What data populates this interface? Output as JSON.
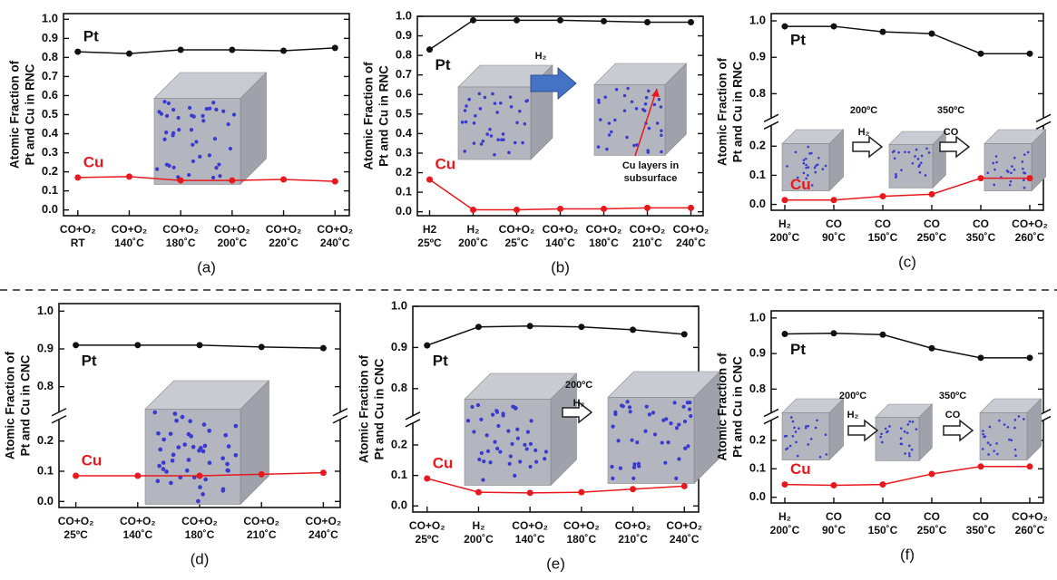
{
  "chart_data": [
    {
      "type": "line",
      "label": "(a)",
      "y_label": [
        "Atomic Fraction of",
        "Pt and Cu in RNC"
      ],
      "categories": [
        [
          "CO+O₂",
          "RT"
        ],
        [
          "CO+O₂",
          "140˚C"
        ],
        [
          "CO+O₂",
          "180˚C"
        ],
        [
          "CO+O₂",
          "200˚C"
        ],
        [
          "CO+O₂",
          "220˚C"
        ],
        [
          "CO+O₂",
          "240˚C"
        ]
      ],
      "series": [
        {
          "name": "Pt",
          "color": "#111111",
          "values": [
            0.83,
            0.82,
            0.84,
            0.84,
            0.835,
            0.85
          ]
        },
        {
          "name": "Cu",
          "color": "#e8191e",
          "values": [
            0.17,
            0.175,
            0.155,
            0.155,
            0.16,
            0.15
          ]
        }
      ],
      "ylim": [
        -0.03,
        1.03
      ],
      "yticks": [
        {
          "value": 0,
          "label": "0.0"
        },
        0.1,
        0.2,
        0.3,
        0.4,
        0.5,
        0.6,
        0.7,
        0.8,
        0.9,
        {
          "value": 1,
          "label": "1.0"
        }
      ],
      "annotations": []
    },
    {
      "type": "line",
      "label": "(b)",
      "y_label": [
        "Atomic Fraction of",
        "Pt and Cu in RNC"
      ],
      "categories": [
        [
          "H2",
          "25ºC"
        ],
        [
          "H₂",
          "200˚C"
        ],
        [
          "CO+O₂",
          "25˚C"
        ],
        [
          "CO+O₂",
          "140˚C"
        ],
        [
          "CO+O₂",
          "180˚C"
        ],
        [
          "CO+O₂",
          "210˚C"
        ],
        [
          "CO+O₂",
          "240˚C"
        ]
      ],
      "series": [
        {
          "name": "Pt",
          "color": "#111111",
          "values": [
            0.83,
            0.98,
            0.98,
            0.98,
            0.975,
            0.97,
            0.97
          ]
        },
        {
          "name": "Cu",
          "color": "#e8191e",
          "values": [
            0.165,
            0.01,
            0.01,
            0.015,
            0.015,
            0.02,
            0.02
          ]
        }
      ],
      "ylim": [
        -0.02,
        1.0
      ],
      "yticks": [
        {
          "value": 0,
          "label": "0.0"
        },
        0.1,
        0.2,
        0.3,
        0.4,
        0.5,
        0.6,
        0.7,
        0.8,
        0.9,
        {
          "value": 1,
          "label": "1.0"
        }
      ],
      "annotations": [
        "H₂",
        "Cu layers in",
        "subsurface"
      ]
    },
    {
      "type": "line",
      "label": "(c)",
      "y_label": [
        "Atomic Fraction of",
        "Pt and Cu in RNC"
      ],
      "categories": [
        [
          "H₂",
          "200˚C"
        ],
        [
          "CO",
          "90˚C"
        ],
        [
          "CO",
          "150˚C"
        ],
        [
          "CO",
          "250˚C"
        ],
        [
          "CO",
          "350˚C"
        ],
        [
          "CO+O₂",
          "260˚C"
        ]
      ],
      "series": [
        {
          "name": "Pt",
          "color": "#111111",
          "values": [
            0.985,
            0.985,
            0.97,
            0.965,
            0.91,
            0.91
          ]
        },
        {
          "name": "Cu",
          "color": "#e8191e",
          "values": [
            0.015,
            0.015,
            0.028,
            0.035,
            0.09,
            0.09
          ]
        }
      ],
      "y_segments": [
        {
          "ylim": [
            -0.02,
            0.25
          ],
          "yticks": [
            {
              "value": 0,
              "label": "0.0"
            },
            0.1,
            0.2
          ]
        },
        {
          "ylim": [
            0.75,
            1.02
          ],
          "yticks": [
            0.8,
            0.9,
            {
              "value": 1,
              "label": "1.0"
            }
          ]
        }
      ],
      "annotations": [
        "200ºC",
        "H₂",
        "350ºC",
        "CO"
      ]
    },
    {
      "type": "line",
      "label": "(d)",
      "y_label": [
        "Atomic Fraction of",
        "Pt and Cu in CNC"
      ],
      "categories": [
        [
          "CO+O₂",
          "25ºC"
        ],
        [
          "CO+O₂",
          "140˚C"
        ],
        [
          "CO+O₂",
          "180˚C"
        ],
        [
          "CO+O₂",
          "210˚C"
        ],
        [
          "CO+O₂",
          "240˚C"
        ]
      ],
      "series": [
        {
          "name": "Pt",
          "color": "#111111",
          "values": [
            0.91,
            0.91,
            0.91,
            0.905,
            0.902
          ]
        },
        {
          "name": "Cu",
          "color": "#e8191e",
          "values": [
            0.085,
            0.085,
            0.085,
            0.09,
            0.095
          ]
        }
      ],
      "y_segments": [
        {
          "ylim": [
            -0.02,
            0.25
          ],
          "yticks": [
            {
              "value": 0,
              "label": "0.0"
            },
            0.1,
            0.2
          ]
        },
        {
          "ylim": [
            0.75,
            1.02
          ],
          "yticks": [
            0.8,
            0.9,
            {
              "value": 1,
              "label": "1.0"
            }
          ]
        }
      ],
      "annotations": []
    },
    {
      "type": "line",
      "label": "(e)",
      "y_label": [
        "Atomic Fraction of",
        "Pt and Cu in CNC"
      ],
      "categories": [
        [
          "CO+O₂",
          "25ºC"
        ],
        [
          "H₂",
          "200˚C"
        ],
        [
          "CO+O₂",
          "140˚C"
        ],
        [
          "CO+O₂",
          "180˚C"
        ],
        [
          "CO+O₂",
          "210˚C"
        ],
        [
          "CO+O₂",
          "240˚C"
        ]
      ],
      "series": [
        {
          "name": "Pt",
          "color": "#111111",
          "values": [
            0.905,
            0.95,
            0.952,
            0.95,
            0.943,
            0.932
          ]
        },
        {
          "name": "Cu",
          "color": "#e8191e",
          "values": [
            0.09,
            0.045,
            0.043,
            0.045,
            0.055,
            0.065
          ]
        }
      ],
      "y_segments": [
        {
          "ylim": [
            -0.02,
            0.25
          ],
          "yticks": [
            {
              "value": 0,
              "label": "0.0"
            },
            0.1,
            0.2
          ]
        },
        {
          "ylim": [
            0.75,
            1.0
          ],
          "yticks": [
            0.8,
            0.9,
            {
              "value": 1,
              "label": "1.0"
            }
          ]
        }
      ],
      "annotations": [
        "200ºC",
        "H₂"
      ]
    },
    {
      "type": "line",
      "label": "(f)",
      "y_label": [
        "Atomic Fraction of",
        "Pt and Cu in CNC"
      ],
      "categories": [
        [
          "H₂",
          "200˚C"
        ],
        [
          "CO",
          "90˚C"
        ],
        [
          "CO",
          "150˚C"
        ],
        [
          "CO",
          "250˚C"
        ],
        [
          "CO",
          "350˚C"
        ],
        [
          "CO+O₂",
          "260˚C"
        ]
      ],
      "series": [
        {
          "name": "Pt",
          "color": "#111111",
          "values": [
            0.955,
            0.957,
            0.953,
            0.915,
            0.888,
            0.888
          ]
        },
        {
          "name": "Cu",
          "color": "#e8191e",
          "values": [
            0.045,
            0.042,
            0.045,
            0.082,
            0.108,
            0.108
          ]
        }
      ],
      "y_segments": [
        {
          "ylim": [
            -0.02,
            0.25
          ],
          "yticks": [
            {
              "value": 0,
              "label": "0.0"
            },
            0.1,
            0.2
          ]
        },
        {
          "ylim": [
            0.75,
            1.02
          ],
          "yticks": [
            0.8,
            0.9,
            {
              "value": 1,
              "label": "1.0"
            }
          ]
        }
      ],
      "annotations": [
        "200ºC",
        "H₂",
        "350ºC",
        "CO"
      ]
    }
  ]
}
